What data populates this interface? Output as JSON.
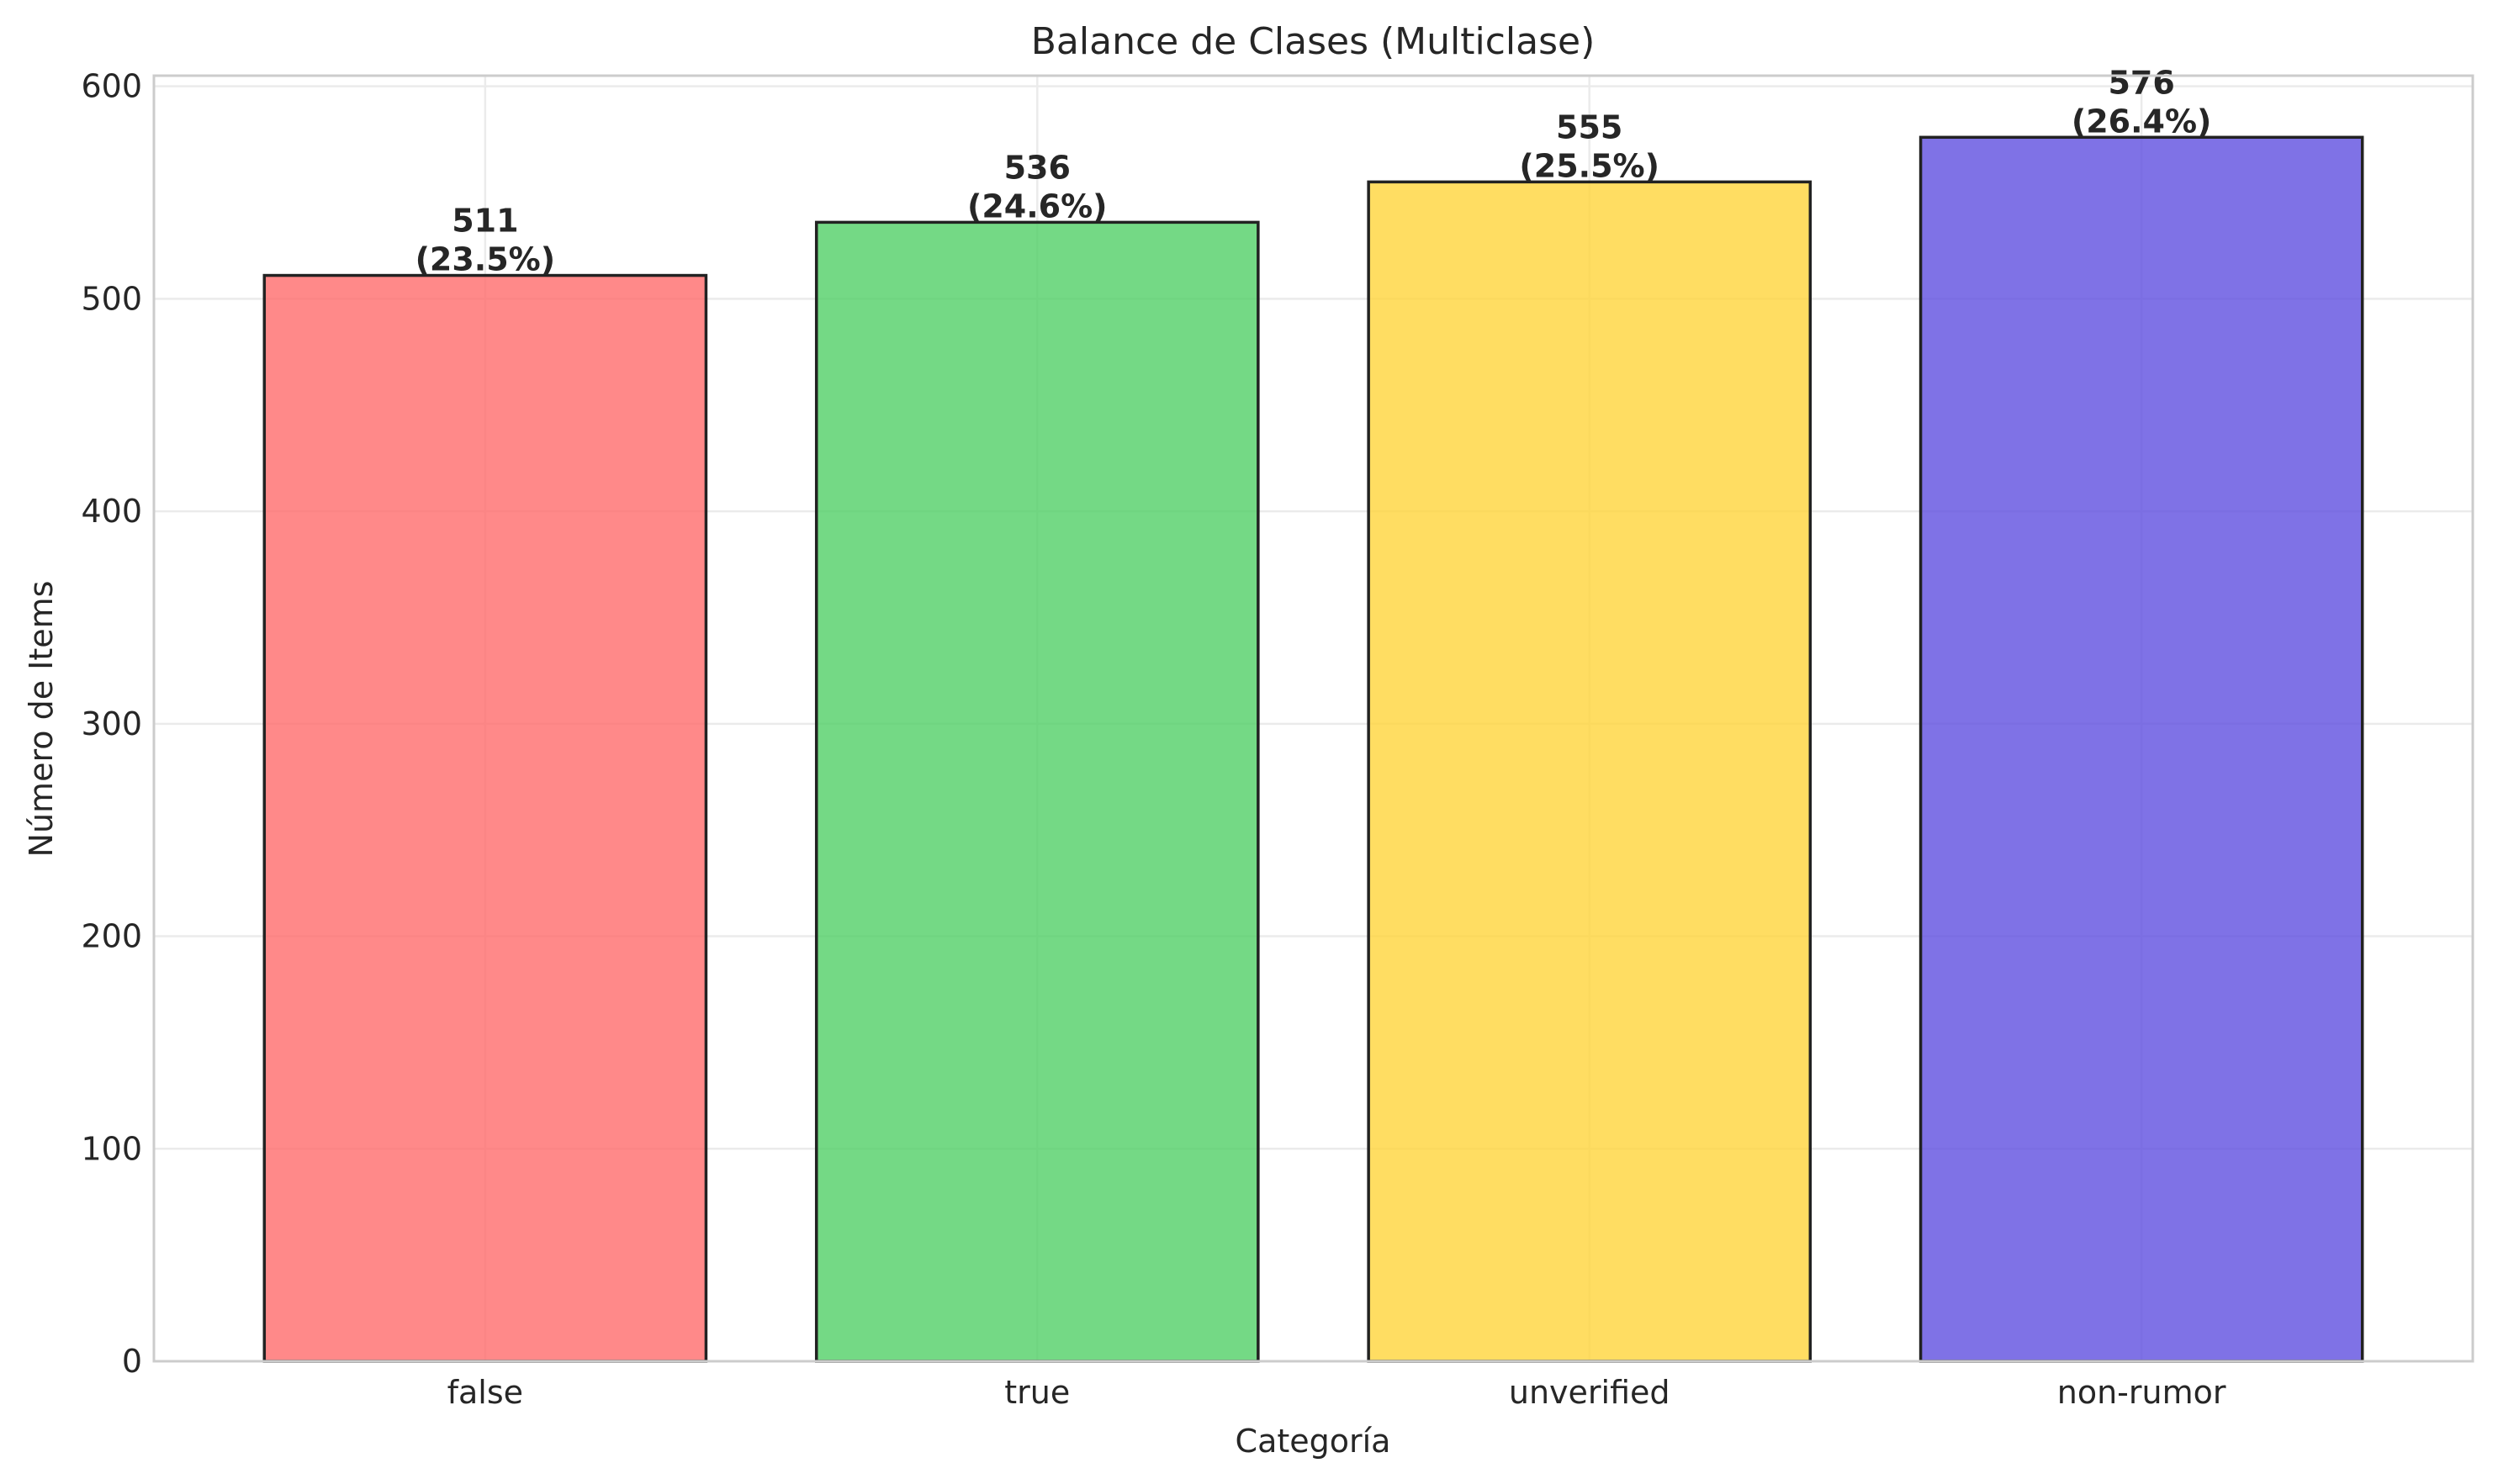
{
  "chart_data": {
    "type": "bar",
    "title": "Balance de Clases (Multiclase)",
    "xlabel": "Categoría",
    "ylabel": "Número de Items",
    "categories": [
      "false",
      "true",
      "unverified",
      "non-rumor"
    ],
    "values": [
      511,
      536,
      555,
      576
    ],
    "value_labels": [
      "511",
      "536",
      "555",
      "576"
    ],
    "percent_labels": [
      "(23.5%)",
      "(24.6%)",
      "(25.5%)",
      "(26.4%)"
    ],
    "colors": [
      "#ff6b6b",
      "#51cf66",
      "#ffd43b",
      "#5f4fe0"
    ],
    "ylim": [
      0,
      605
    ],
    "yticks": [
      0,
      100,
      200,
      300,
      400,
      500,
      600
    ],
    "grid": true,
    "legend": "none"
  }
}
